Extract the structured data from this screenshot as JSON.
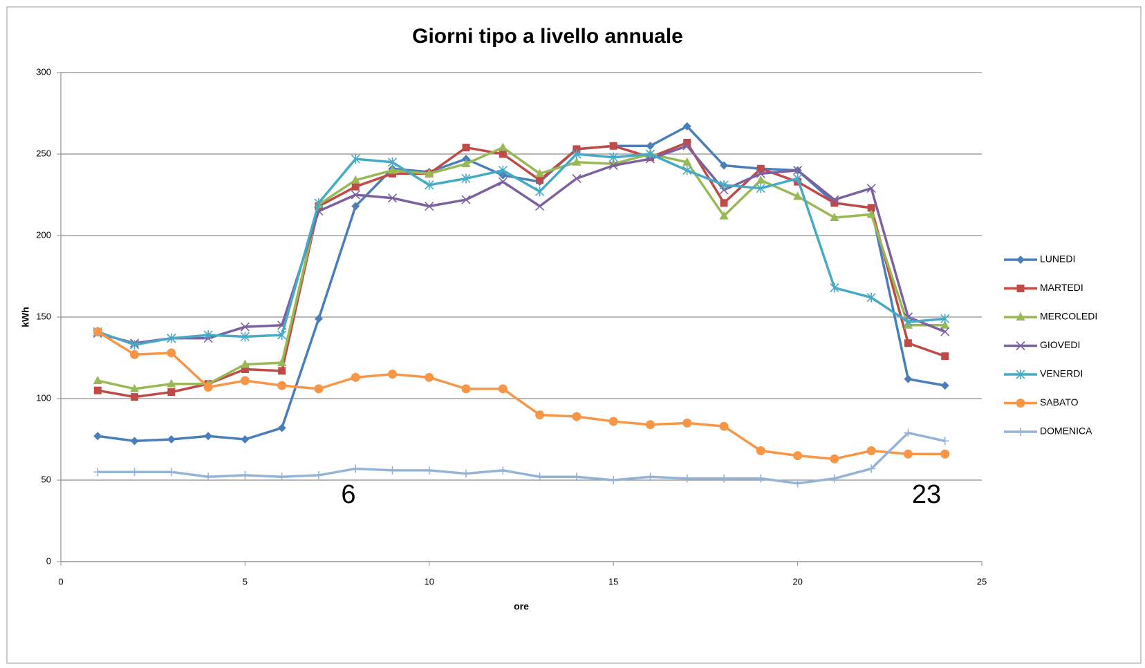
{
  "chart_data": {
    "type": "line",
    "title": "Giorni tipo a livello annuale",
    "xlabel": "ore",
    "ylabel": "kWh",
    "x": [
      1,
      2,
      3,
      4,
      5,
      6,
      7,
      8,
      9,
      10,
      11,
      12,
      13,
      14,
      15,
      16,
      17,
      18,
      19,
      20,
      21,
      22,
      23,
      24
    ],
    "series": [
      {
        "name": "LUNEDI",
        "color": "#4a7ebb",
        "marker": "diamond",
        "values": [
          77,
          74,
          75,
          77,
          75,
          82,
          149,
          218,
          241,
          239,
          247,
          237,
          233,
          253,
          255,
          255,
          267,
          243,
          241,
          240,
          220,
          217,
          112,
          108
        ]
      },
      {
        "name": "MARTEDI",
        "color": "#be4b48",
        "marker": "square",
        "values": [
          105,
          101,
          104,
          109,
          118,
          117,
          218,
          230,
          238,
          238,
          254,
          250,
          234,
          253,
          255,
          248,
          257,
          220,
          241,
          233,
          220,
          217,
          134,
          126
        ]
      },
      {
        "name": "MERCOLEDI",
        "color": "#98b954",
        "marker": "triangle",
        "values": [
          111,
          106,
          109,
          109,
          121,
          122,
          219,
          234,
          240,
          238,
          244,
          254,
          238,
          245,
          244,
          250,
          245,
          212,
          234,
          224,
          211,
          213,
          145,
          145
        ]
      },
      {
        "name": "GIOVEDI",
        "color": "#7d60a0",
        "marker": "x",
        "values": [
          140,
          134,
          137,
          137,
          144,
          145,
          215,
          225,
          223,
          218,
          222,
          233,
          218,
          235,
          243,
          247,
          255,
          228,
          238,
          240,
          222,
          229,
          150,
          141
        ]
      },
      {
        "name": "VENERDI",
        "color": "#46aac5",
        "marker": "star",
        "values": [
          141,
          133,
          137,
          139,
          138,
          139,
          220,
          247,
          245,
          231,
          235,
          240,
          227,
          250,
          248,
          250,
          240,
          231,
          229,
          235,
          168,
          162,
          147,
          149
        ]
      },
      {
        "name": "SABATO",
        "color": "#f79646",
        "marker": "circle",
        "values": [
          141,
          127,
          128,
          107,
          111,
          108,
          106,
          113,
          115,
          113,
          106,
          106,
          90,
          89,
          86,
          84,
          85,
          83,
          68,
          65,
          63,
          68,
          66,
          66
        ]
      },
      {
        "name": "DOMENICA",
        "color": "#95b3d7",
        "marker": "plus",
        "values": [
          55,
          55,
          55,
          52,
          53,
          52,
          53,
          57,
          56,
          56,
          54,
          56,
          52,
          52,
          50,
          52,
          51,
          51,
          51,
          48,
          51,
          57,
          79,
          74
        ]
      }
    ],
    "xlim": [
      0,
      25
    ],
    "xticks": [
      0,
      5,
      10,
      15,
      20,
      25
    ],
    "ylim": [
      0,
      300
    ],
    "yticks": [
      0,
      50,
      100,
      150,
      200,
      250,
      300
    ],
    "grid": true,
    "legend": "right",
    "annotations": [
      "6",
      "23"
    ]
  }
}
